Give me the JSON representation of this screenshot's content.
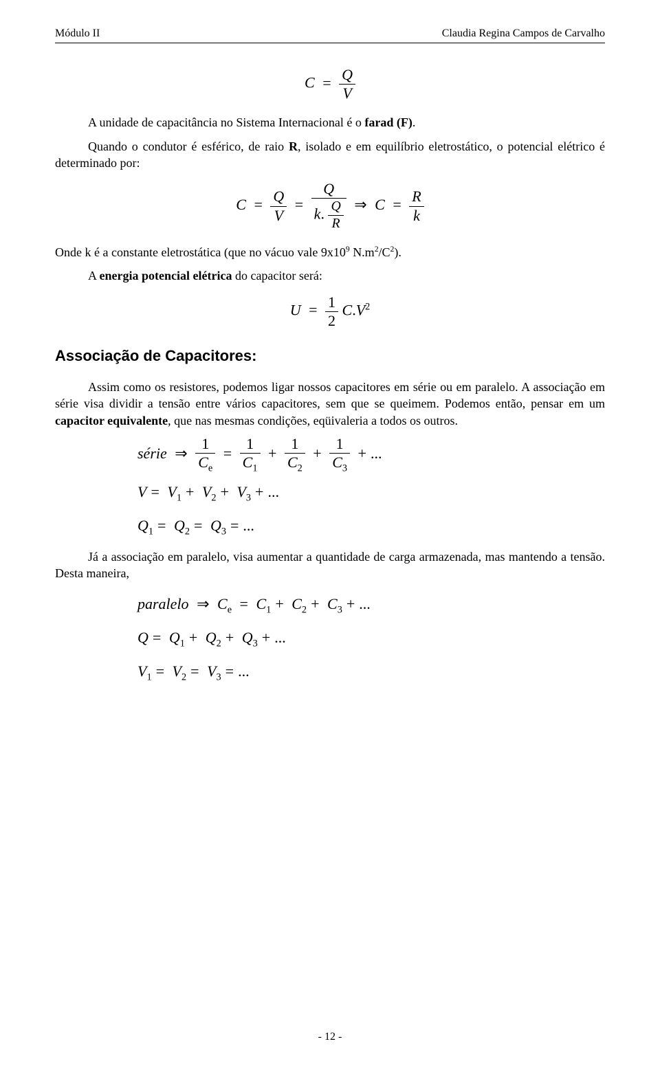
{
  "header": {
    "left": "Módulo II",
    "right": "Claudia Regina Campos de Carvalho"
  },
  "p1": "A unidade de capacitância no Sistema Internacional é o ",
  "p1b": "farad (F)",
  "p1c": ".",
  "p2a": "Quando o condutor é esférico, de raio ",
  "p2b": "R",
  "p2c": ", isolado e em equilíbrio eletrostático, o potencial elétrico é determinado por:",
  "p3a": "Onde k é a constante eletrostática (que no vácuo vale 9x10",
  "p3sup": "9",
  "p3b": " N.m",
  "p3sup2": "2",
  "p3c": "/C",
  "p3sup3": "2",
  "p3d": ").",
  "p4a": "A ",
  "p4b": "energia potencial elétrica",
  "p4c": " do capacitor será:",
  "h1": "Associação de Capacitores:",
  "p5": "Assim como os resistores, podemos ligar nossos capacitores em série ou em paralelo. A associação em série visa dividir a tensão entre vários capacitores, sem que se queimem. Podemos então, pensar em um ",
  "p5b": "capacitor equivalente",
  "p5c": ", que nas mesmas condições, eqüivaleria a todos os outros.",
  "p6": "Já a associação em paralelo, visa aumentar a quantidade de carga armazenada, mas mantendo a tensão. Desta maneira,",
  "eq": {
    "C": "C",
    "Q": "Q",
    "V": "V",
    "R": "R",
    "k": "k",
    "U": "U",
    "eqs": "=",
    "imp": "⇒",
    "plus": "+",
    "dot": ".",
    "dots": "...",
    "half_num": "1",
    "half_den": "2",
    "sq": "2",
    "serie": "série",
    "paralelo": "paralelo",
    "s1": "1",
    "s2": "2",
    "s3": "3",
    "se": "e"
  },
  "footer": "- 12 -"
}
